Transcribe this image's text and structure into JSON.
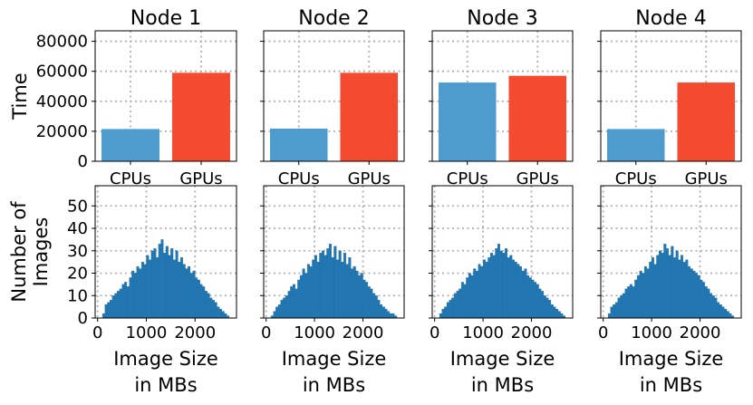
{
  "chart_data": [
    {
      "type": "bar",
      "title": "Node 1",
      "ylabel": "Time",
      "xlabel": "",
      "categories": [
        "CPUs",
        "GPUs"
      ],
      "values": [
        21500,
        59000
      ],
      "colors": [
        "#4d9ccd",
        "#f44a30"
      ],
      "ylim": [
        0,
        87000
      ],
      "yticks": [
        0,
        20000,
        40000,
        60000,
        80000
      ],
      "ytick_labels": [
        "0",
        "20000",
        "40000",
        "60000",
        "80000"
      ],
      "grid": true
    },
    {
      "type": "bar",
      "title": "Node 2",
      "ylabel": "",
      "xlabel": "",
      "categories": [
        "CPUs",
        "GPUs"
      ],
      "values": [
        21800,
        59000
      ],
      "colors": [
        "#4d9ccd",
        "#f44a30"
      ],
      "ylim": [
        0,
        87000
      ],
      "yticks": [
        0,
        20000,
        40000,
        60000,
        80000
      ],
      "grid": true
    },
    {
      "type": "bar",
      "title": "Node 3",
      "ylabel": "",
      "xlabel": "",
      "categories": [
        "CPUs",
        "GPUs"
      ],
      "values": [
        52500,
        57000
      ],
      "colors": [
        "#4d9ccd",
        "#f44a30"
      ],
      "ylim": [
        0,
        87000
      ],
      "yticks": [
        0,
        20000,
        40000,
        60000,
        80000
      ],
      "grid": true
    },
    {
      "type": "bar",
      "title": "Node 4",
      "ylabel": "",
      "xlabel": "",
      "categories": [
        "CPUs",
        "GPUs"
      ],
      "values": [
        21500,
        52500
      ],
      "colors": [
        "#4d9ccd",
        "#f44a30"
      ],
      "ylim": [
        0,
        87000
      ],
      "yticks": [
        0,
        20000,
        40000,
        60000,
        80000
      ],
      "grid": true
    },
    {
      "type": "bar",
      "title": "",
      "ylabel": "Number of\nImages",
      "xlabel": "Image Size\nin MBs",
      "color": "#1f77b4",
      "bin_width": 50,
      "x": [
        100,
        150,
        200,
        250,
        300,
        350,
        400,
        450,
        500,
        550,
        600,
        650,
        700,
        750,
        800,
        850,
        900,
        950,
        1000,
        1050,
        1100,
        1150,
        1200,
        1250,
        1300,
        1350,
        1400,
        1450,
        1500,
        1550,
        1600,
        1650,
        1700,
        1750,
        1800,
        1850,
        1900,
        1950,
        2000,
        2050,
        2100,
        2150,
        2200,
        2250,
        2300,
        2350,
        2400,
        2450,
        2500,
        2550,
        2600,
        2650
      ],
      "values": [
        2,
        6,
        7,
        8,
        10,
        11,
        12,
        13,
        15,
        16,
        14,
        18,
        21,
        20,
        23,
        22,
        25,
        24,
        28,
        26,
        30,
        31,
        27,
        33,
        35,
        29,
        32,
        28,
        31,
        26,
        30,
        25,
        27,
        24,
        22,
        23,
        20,
        21,
        18,
        17,
        15,
        14,
        12,
        11,
        9,
        8,
        7,
        5,
        4,
        3,
        2,
        1
      ],
      "xlim": [
        -50,
        2850
      ],
      "ylim": [
        0,
        59
      ],
      "xticks": [
        0,
        1000,
        2000
      ],
      "xtick_labels": [
        "0",
        "1000",
        "2000"
      ],
      "yticks": [
        0,
        10,
        20,
        30,
        40,
        50
      ],
      "ytick_labels": [
        "0",
        "10",
        "20",
        "30",
        "40",
        "50"
      ],
      "grid": true
    },
    {
      "type": "bar",
      "title": "",
      "ylabel": "",
      "xlabel": "Image Size\nin MBs",
      "color": "#1f77b4",
      "bin_width": 50,
      "x": [
        100,
        150,
        200,
        250,
        300,
        350,
        400,
        450,
        500,
        550,
        600,
        650,
        700,
        750,
        800,
        850,
        900,
        950,
        1000,
        1050,
        1100,
        1150,
        1200,
        1250,
        1300,
        1350,
        1400,
        1450,
        1500,
        1550,
        1600,
        1650,
        1700,
        1750,
        1800,
        1850,
        1900,
        1950,
        2000,
        2050,
        2100,
        2150,
        2200,
        2250,
        2300,
        2350,
        2400,
        2450,
        2500,
        2550,
        2600,
        2650
      ],
      "values": [
        1,
        3,
        5,
        6,
        8,
        9,
        10,
        12,
        14,
        15,
        13,
        17,
        19,
        22,
        20,
        24,
        23,
        26,
        28,
        25,
        29,
        30,
        28,
        31,
        33,
        27,
        32,
        26,
        30,
        25,
        29,
        24,
        27,
        22,
        23,
        21,
        19,
        20,
        17,
        16,
        14,
        13,
        11,
        10,
        8,
        6,
        5,
        4,
        3,
        2,
        2,
        1
      ],
      "xlim": [
        -50,
        2850
      ],
      "ylim": [
        0,
        59
      ],
      "xticks": [
        0,
        1000,
        2000
      ],
      "xtick_labels": [
        "0",
        "1000",
        "2000"
      ],
      "yticks": [
        0,
        10,
        20,
        30,
        40,
        50
      ],
      "grid": true
    },
    {
      "type": "bar",
      "title": "",
      "ylabel": "",
      "xlabel": "Image Size\nin MBs",
      "color": "#1f77b4",
      "bin_width": 50,
      "x": [
        100,
        150,
        200,
        250,
        300,
        350,
        400,
        450,
        500,
        550,
        600,
        650,
        700,
        750,
        800,
        850,
        900,
        950,
        1000,
        1050,
        1100,
        1150,
        1200,
        1250,
        1300,
        1350,
        1400,
        1450,
        1500,
        1550,
        1600,
        1650,
        1700,
        1750,
        1800,
        1850,
        1900,
        1950,
        2000,
        2050,
        2100,
        2150,
        2200,
        2250,
        2300,
        2350,
        2400,
        2450,
        2500,
        2550,
        2600,
        2650
      ],
      "values": [
        2,
        4,
        5,
        7,
        8,
        9,
        11,
        12,
        13,
        16,
        15,
        18,
        20,
        19,
        22,
        21,
        24,
        23,
        26,
        25,
        27,
        29,
        28,
        31,
        33,
        30,
        29,
        31,
        27,
        28,
        26,
        25,
        24,
        23,
        21,
        22,
        19,
        18,
        17,
        16,
        15,
        13,
        12,
        10,
        9,
        8,
        6,
        5,
        4,
        3,
        2,
        1
      ],
      "xlim": [
        -50,
        2850
      ],
      "ylim": [
        0,
        59
      ],
      "xticks": [
        0,
        1000,
        2000
      ],
      "xtick_labels": [
        "0",
        "1000",
        "2000"
      ],
      "yticks": [
        0,
        10,
        20,
        30,
        40,
        50
      ],
      "grid": true
    },
    {
      "type": "bar",
      "title": "",
      "ylabel": "",
      "xlabel": "Image Size\nin MBs",
      "color": "#1f77b4",
      "bin_width": 50,
      "x": [
        100,
        150,
        200,
        250,
        300,
        350,
        400,
        450,
        500,
        550,
        600,
        650,
        700,
        750,
        800,
        850,
        900,
        950,
        1000,
        1050,
        1100,
        1150,
        1200,
        1250,
        1300,
        1350,
        1400,
        1450,
        1500,
        1550,
        1600,
        1650,
        1700,
        1750,
        1800,
        1850,
        1900,
        1950,
        2000,
        2050,
        2100,
        2150,
        2200,
        2250,
        2300,
        2350,
        2400,
        2450,
        2500,
        2550,
        2600,
        2650
      ],
      "values": [
        2,
        5,
        6,
        7,
        9,
        10,
        11,
        13,
        14,
        15,
        14,
        17,
        19,
        21,
        20,
        23,
        22,
        25,
        27,
        24,
        28,
        30,
        29,
        33,
        31,
        28,
        32,
        27,
        30,
        26,
        28,
        25,
        26,
        23,
        22,
        21,
        20,
        19,
        17,
        16,
        14,
        13,
        11,
        10,
        9,
        7,
        6,
        5,
        4,
        3,
        2,
        1
      ],
      "xlim": [
        -50,
        2850
      ],
      "ylim": [
        0,
        59
      ],
      "xticks": [
        0,
        1000,
        2000
      ],
      "xtick_labels": [
        "0",
        "1000",
        "2000"
      ],
      "yticks": [
        0,
        10,
        20,
        30,
        40,
        50
      ],
      "grid": true
    }
  ]
}
